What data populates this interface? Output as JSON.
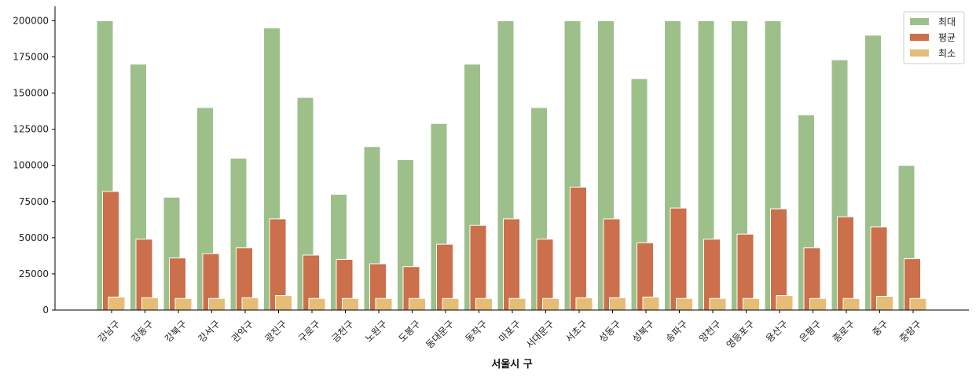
{
  "chart_data": {
    "type": "bar",
    "title": "",
    "xlabel": "서울시 구",
    "ylabel": "",
    "ylim": [
      0,
      210000
    ],
    "yticks": [
      0,
      25000,
      50000,
      75000,
      100000,
      125000,
      150000,
      175000,
      200000
    ],
    "grid": false,
    "legend_position": "top-right",
    "categories": [
      "강남구",
      "강동구",
      "강북구",
      "강서구",
      "관악구",
      "광진구",
      "구로구",
      "금천구",
      "노원구",
      "도봉구",
      "동대문구",
      "동작구",
      "마포구",
      "서대문구",
      "서초구",
      "성동구",
      "성북구",
      "송파구",
      "양천구",
      "영등포구",
      "용산구",
      "은평구",
      "종로구",
      "중구",
      "중랑구"
    ],
    "series": [
      {
        "name": "최대",
        "color": "#9dc08b",
        "values": [
          200000,
          170000,
          78000,
          140000,
          105000,
          195000,
          147000,
          80000,
          113000,
          104000,
          129000,
          170000,
          200000,
          140000,
          200000,
          200000,
          160000,
          200000,
          200000,
          200000,
          200000,
          135000,
          173000,
          190000,
          100000
        ]
      },
      {
        "name": "평균",
        "color": "#cc6f4b",
        "values": [
          82000,
          49000,
          36000,
          39000,
          43000,
          63000,
          38000,
          35000,
          32000,
          30000,
          45500,
          58500,
          63000,
          49000,
          85000,
          63000,
          46500,
          70500,
          49000,
          52500,
          70000,
          43000,
          64500,
          57500,
          35500
        ]
      },
      {
        "name": "최소",
        "color": "#e5bd77",
        "values": [
          9000,
          8500,
          8000,
          8000,
          8500,
          10000,
          8000,
          8000,
          8000,
          8000,
          8000,
          8000,
          8000,
          8000,
          8500,
          8500,
          9000,
          8000,
          8000,
          8000,
          10000,
          8000,
          8000,
          9500,
          8000
        ]
      }
    ]
  }
}
